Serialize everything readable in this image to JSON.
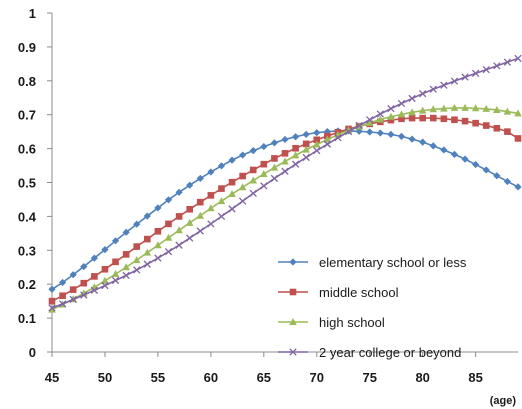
{
  "chart_data": {
    "type": "line",
    "title": "",
    "xlabel": "(age)",
    "ylabel": "",
    "xlim": [
      45,
      89
    ],
    "ylim": [
      0,
      1
    ],
    "x_ticks": [
      45,
      50,
      55,
      60,
      65,
      70,
      75,
      80,
      85
    ],
    "y_ticks": [
      0,
      0.1,
      0.2,
      0.3,
      0.4,
      0.5,
      0.6,
      0.7,
      0.8,
      0.9,
      1
    ],
    "y_tick_labels": [
      "0",
      "0.1",
      "0.2",
      "0.3",
      "0.4",
      "0.5",
      "0.6",
      "0.7",
      "0.8",
      "0.9",
      "1"
    ],
    "grid": false,
    "legend_position": "right",
    "x": [
      45,
      46,
      47,
      48,
      49,
      50,
      51,
      52,
      53,
      54,
      55,
      56,
      57,
      58,
      59,
      60,
      61,
      62,
      63,
      64,
      65,
      66,
      67,
      68,
      69,
      70,
      71,
      72,
      73,
      74,
      75,
      76,
      77,
      78,
      79,
      80,
      81,
      82,
      83,
      84,
      85,
      86,
      87,
      88,
      89
    ],
    "series": [
      {
        "name": "elementary school or less",
        "color": "#4F81BD",
        "marker": "diamond",
        "values": [
          0.185,
          0.205,
          0.228,
          0.252,
          0.277,
          0.302,
          0.328,
          0.353,
          0.377,
          0.401,
          0.425,
          0.449,
          0.471,
          0.492,
          0.512,
          0.531,
          0.549,
          0.566,
          0.581,
          0.594,
          0.606,
          0.617,
          0.627,
          0.635,
          0.642,
          0.647,
          0.65,
          0.652,
          0.652,
          0.651,
          0.649,
          0.646,
          0.642,
          0.636,
          0.628,
          0.619,
          0.608,
          0.596,
          0.583,
          0.569,
          0.553,
          0.537,
          0.52,
          0.503,
          0.487
        ]
      },
      {
        "name": "middle school",
        "color": "#C0504D",
        "marker": "square",
        "values": [
          0.15,
          0.166,
          0.184,
          0.203,
          0.223,
          0.244,
          0.266,
          0.288,
          0.311,
          0.333,
          0.356,
          0.378,
          0.4,
          0.421,
          0.442,
          0.462,
          0.482,
          0.501,
          0.519,
          0.537,
          0.554,
          0.571,
          0.586,
          0.601,
          0.614,
          0.626,
          0.637,
          0.648,
          0.658,
          0.666,
          0.673,
          0.679,
          0.684,
          0.688,
          0.69,
          0.69,
          0.69,
          0.688,
          0.685,
          0.681,
          0.675,
          0.668,
          0.66,
          0.65,
          0.63
        ]
      },
      {
        "name": "high school",
        "color": "#9BBB59",
        "marker": "triangle",
        "values": [
          0.125,
          0.14,
          0.156,
          0.173,
          0.191,
          0.21,
          0.23,
          0.25,
          0.271,
          0.293,
          0.315,
          0.337,
          0.359,
          0.381,
          0.402,
          0.424,
          0.445,
          0.466,
          0.486,
          0.506,
          0.525,
          0.544,
          0.562,
          0.58,
          0.597,
          0.612,
          0.627,
          0.641,
          0.654,
          0.665,
          0.676,
          0.686,
          0.694,
          0.701,
          0.707,
          0.712,
          0.716,
          0.718,
          0.72,
          0.72,
          0.719,
          0.717,
          0.714,
          0.709,
          0.704
        ]
      },
      {
        "name": "2 year college or beyond",
        "color": "#8064A2",
        "marker": "x",
        "values": [
          0.13,
          0.142,
          0.155,
          0.168,
          0.182,
          0.196,
          0.211,
          0.226,
          0.242,
          0.259,
          0.277,
          0.296,
          0.315,
          0.336,
          0.357,
          0.378,
          0.4,
          0.422,
          0.445,
          0.468,
          0.49,
          0.512,
          0.533,
          0.554,
          0.574,
          0.594,
          0.613,
          0.632,
          0.65,
          0.668,
          0.685,
          0.702,
          0.718,
          0.733,
          0.748,
          0.762,
          0.775,
          0.787,
          0.799,
          0.811,
          0.822,
          0.833,
          0.844,
          0.855,
          0.866
        ]
      }
    ]
  }
}
